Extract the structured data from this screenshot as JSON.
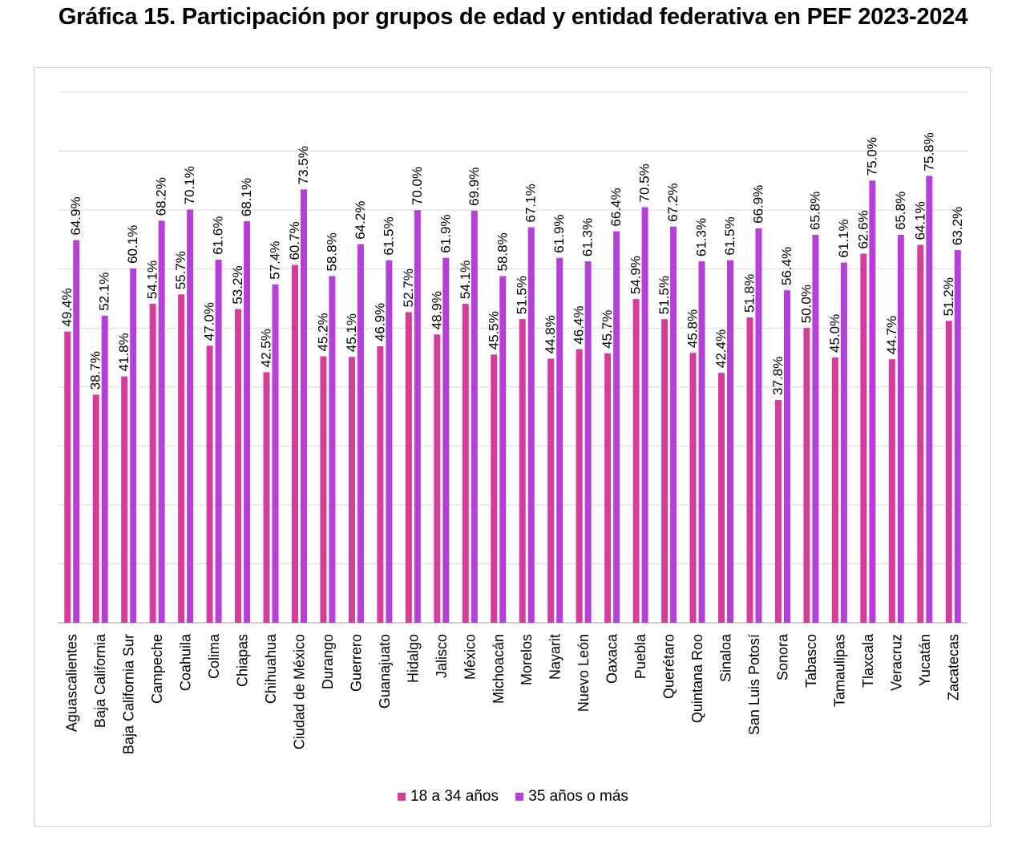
{
  "title": "Gráfica 15. Participación por grupos de edad y entidad federativa en PEF 2023-2024",
  "chart_data": {
    "type": "bar",
    "ylim": [
      0,
      90
    ],
    "grid": true,
    "legend_position": "bottom",
    "categories": [
      "Aguascalientes",
      "Baja California",
      "Baja California Sur",
      "Campeche",
      "Coahuila",
      "Colima",
      "Chiapas",
      "Chihuahua",
      "Ciudad de México",
      "Durango",
      "Guerrero",
      "Guanajuato",
      "Hidalgo",
      "Jalisco",
      "México",
      "Michoacán",
      "Morelos",
      "Nayarit",
      "Nuevo León",
      "Oaxaca",
      "Puebla",
      "Querétaro",
      "Quintana Roo",
      "Sinaloa",
      "San Luis Potosí",
      "Sonora",
      "Tabasco",
      "Tamaulipas",
      "Tlaxcala",
      "Veracruz",
      "Yucatán",
      "Zacatecas"
    ],
    "series": [
      {
        "name": "18 a 34 años",
        "color": "#d63c9c",
        "values": [
          49.4,
          38.7,
          41.8,
          54.1,
          55.7,
          47.0,
          53.2,
          42.5,
          60.7,
          45.2,
          45.1,
          46.9,
          52.7,
          48.9,
          54.1,
          45.5,
          51.5,
          44.8,
          46.4,
          45.7,
          54.9,
          51.5,
          45.8,
          42.4,
          51.8,
          37.8,
          50.0,
          45.0,
          62.6,
          44.7,
          64.1,
          51.2
        ],
        "labels": [
          "49.4%",
          "38.7%",
          "41.8%",
          "54.1%",
          "55.7%",
          "47.0%",
          "53.2%",
          "42.5%",
          "60.7%",
          "45.2%",
          "45.1%",
          "46.9%",
          "52.7%",
          "48.9%",
          "54.1%",
          "45.5%",
          "51.5%",
          "44.8%",
          "46.4%",
          "45.7%",
          "54.9%",
          "51.5%",
          "45.8%",
          "42.4%",
          "51.8%",
          "37.8%",
          "50.0%",
          "45.0%",
          "62.6%",
          "44.7%",
          "64.1%",
          "51.2%"
        ]
      },
      {
        "name": "35 años o más",
        "color": "#b53fd8",
        "values": [
          64.9,
          52.1,
          60.1,
          68.2,
          70.1,
          61.6,
          68.1,
          57.4,
          73.5,
          58.8,
          64.2,
          61.5,
          70.0,
          61.9,
          69.9,
          58.8,
          67.1,
          61.9,
          61.3,
          66.4,
          70.5,
          67.2,
          61.3,
          61.5,
          66.9,
          56.4,
          65.8,
          61.1,
          75.0,
          65.8,
          75.8,
          63.2
        ],
        "labels": [
          "64.9%",
          "52.1%",
          "60.1%",
          "68.2%",
          "70.1%",
          "61.6%",
          "68.1%",
          "57.4%",
          "73.5%",
          "58.8%",
          "64.2%",
          "61.5%",
          "70.0%",
          "61.9%",
          "69.9%",
          "58.8%",
          "67.1%",
          "61.9%",
          "61.3%",
          "66.4%",
          "70.5%",
          "67.2%",
          "61.3%",
          "61.5%",
          "66.9%",
          "56.4%",
          "65.8%",
          "61.1%",
          "75.0%",
          "65.8%",
          "75.8%",
          "63.2%"
        ]
      }
    ]
  }
}
